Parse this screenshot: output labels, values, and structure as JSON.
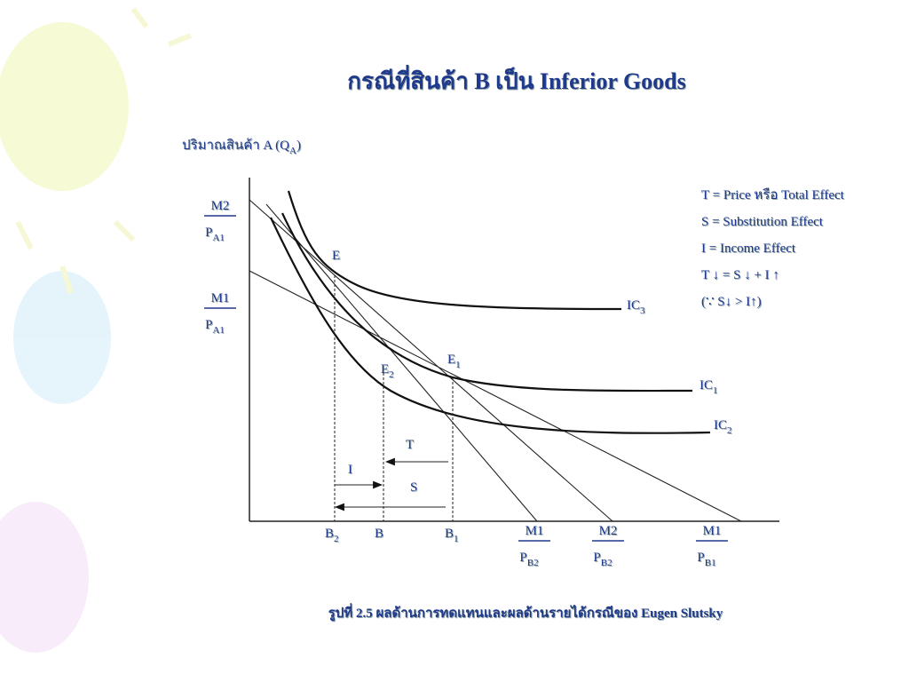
{
  "title": "กรณีที่สินค้า B เป็น Inferior Goods",
  "y_axis_label": {
    "text": "ปริมาณสินค้า A (Q",
    "sub": "A",
    "tail": ")"
  },
  "left_labels": [
    {
      "num": "M2",
      "den": "P",
      "den_sub": "A1"
    },
    {
      "num": "M1",
      "den": "P",
      "den_sub": "A1"
    }
  ],
  "bottom_fractions": [
    {
      "num": "M1",
      "den": "P",
      "den_sub": "B2"
    },
    {
      "num": "M2",
      "den": "P",
      "den_sub": "B2"
    },
    {
      "num": "M1",
      "den": "P",
      "den_sub": "B1"
    }
  ],
  "points": [
    {
      "text": "E",
      "sub": ""
    },
    {
      "text": "E",
      "sub": "2"
    },
    {
      "text": "E",
      "sub": "1"
    }
  ],
  "x_points": [
    {
      "text": "B",
      "sub": "2"
    },
    {
      "text": "B",
      "sub": ""
    },
    {
      "text": "B",
      "sub": "1"
    }
  ],
  "curves": [
    {
      "text": "IC",
      "sub": "3"
    },
    {
      "text": "IC",
      "sub": "1"
    },
    {
      "text": "IC",
      "sub": "2"
    }
  ],
  "effects": [
    "T",
    "I",
    "S"
  ],
  "legend": [
    "T = Price หรือ Total Effect",
    "S = Substitution Effect",
    "I = Income Effect",
    "T ↓  = S ↓ + I ↑",
    "(∵ S↓ > I↑)"
  ],
  "caption": "รูปที่ 2.5  ผลด้านการทดแทนและผลด้านรายได้กรณีของ Eugen Slutsky"
}
